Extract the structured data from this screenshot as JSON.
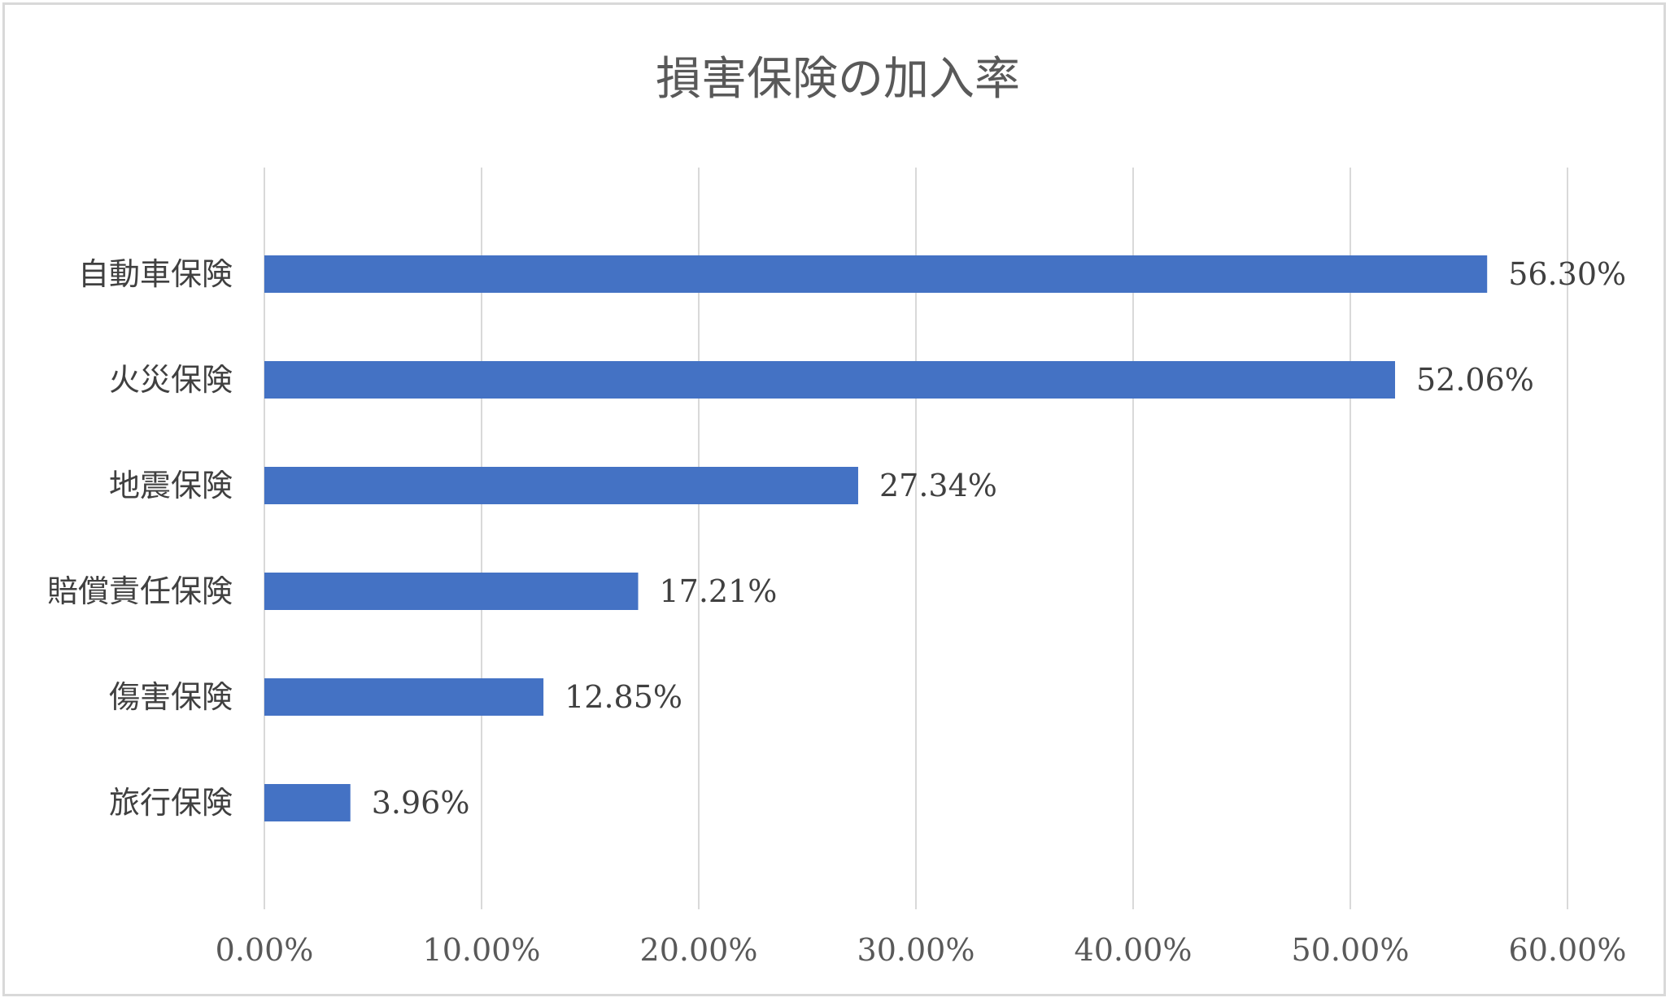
{
  "chart_data": {
    "type": "bar",
    "orientation": "horizontal",
    "title": "損害保険の加入率",
    "categories": [
      "自動車保険",
      "火災保険",
      "地震保険",
      "賠償責任保険",
      "傷害保険",
      "旅行保険"
    ],
    "values": [
      56.3,
      52.06,
      27.34,
      17.21,
      12.85,
      3.96
    ],
    "value_labels": [
      "56.30%",
      "52.06%",
      "27.34%",
      "17.21%",
      "12.85%",
      "3.96%"
    ],
    "xlabel": "",
    "ylabel": "",
    "xlim": [
      0,
      60
    ],
    "xticks": [
      0,
      10,
      20,
      30,
      40,
      50,
      60
    ],
    "xtick_labels": [
      "0.00%",
      "10.00%",
      "20.00%",
      "30.00%",
      "40.00%",
      "50.00%",
      "60.00%"
    ],
    "grid": "vertical",
    "legend": "none",
    "colors": {
      "bar": "#4472c4",
      "grid": "#d9d9d9",
      "frame": "#d9d9d9"
    }
  }
}
